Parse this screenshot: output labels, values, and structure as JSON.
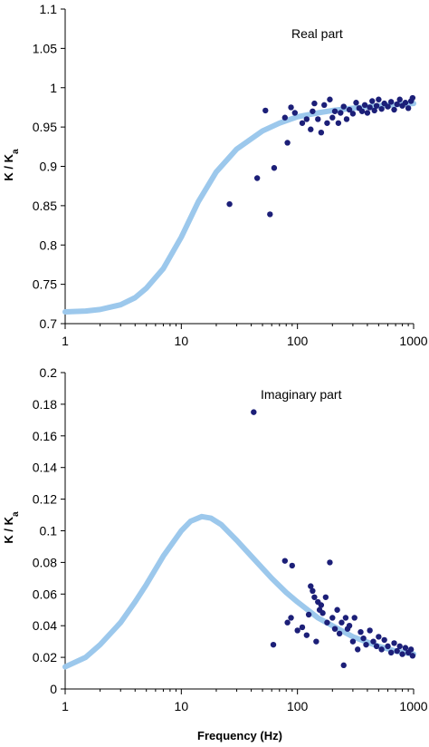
{
  "chart_data": [
    {
      "type": "scatter",
      "annotation": "Real part",
      "ylabel": "K / K",
      "ylabel_sub": "a",
      "x_scale": "log",
      "xlim": [
        1,
        1000
      ],
      "ylim": [
        0.7,
        1.1
      ],
      "x_ticks": [
        1,
        10,
        100,
        1000
      ],
      "x_tick_labels": [
        "1",
        "10",
        "100",
        "1000"
      ],
      "y_ticks": [
        0.7,
        0.75,
        0.8,
        0.85,
        0.9,
        0.95,
        1.0,
        1.05,
        1.1
      ],
      "y_tick_labels": [
        "0.7",
        "0.75",
        "0.8",
        "0.85",
        "0.9",
        "0.95",
        "1",
        "1.05",
        "1.1"
      ],
      "grid": false,
      "series": [
        {
          "kind": "line",
          "color": "#9cc8ec",
          "points": [
            [
              1,
              0.715
            ],
            [
              1.5,
              0.716
            ],
            [
              2,
              0.718
            ],
            [
              3,
              0.724
            ],
            [
              4,
              0.733
            ],
            [
              5,
              0.745
            ],
            [
              7,
              0.77
            ],
            [
              10,
              0.81
            ],
            [
              14,
              0.855
            ],
            [
              20,
              0.893
            ],
            [
              30,
              0.922
            ],
            [
              50,
              0.945
            ],
            [
              70,
              0.955
            ],
            [
              100,
              0.963
            ],
            [
              150,
              0.968
            ],
            [
              200,
              0.971
            ],
            [
              300,
              0.974
            ],
            [
              500,
              0.977
            ],
            [
              1000,
              0.98
            ]
          ]
        },
        {
          "kind": "scatter",
          "color": "#1c1f78",
          "points": [
            [
              26,
              0.852
            ],
            [
              45,
              0.885
            ],
            [
              53,
              0.971
            ],
            [
              58,
              0.839
            ],
            [
              63,
              0.898
            ],
            [
              78,
              0.962
            ],
            [
              82,
              0.93
            ],
            [
              88,
              0.975
            ],
            [
              95,
              0.968
            ],
            [
              110,
              0.955
            ],
            [
              120,
              0.96
            ],
            [
              130,
              0.947
            ],
            [
              135,
              0.97
            ],
            [
              140,
              0.98
            ],
            [
              150,
              0.96
            ],
            [
              160,
              0.943
            ],
            [
              170,
              0.978
            ],
            [
              180,
              0.955
            ],
            [
              190,
              0.985
            ],
            [
              200,
              0.962
            ],
            [
              210,
              0.97
            ],
            [
              225,
              0.955
            ],
            [
              235,
              0.968
            ],
            [
              250,
              0.976
            ],
            [
              265,
              0.96
            ],
            [
              280,
              0.972
            ],
            [
              300,
              0.967
            ],
            [
              320,
              0.981
            ],
            [
              340,
              0.974
            ],
            [
              360,
              0.97
            ],
            [
              380,
              0.978
            ],
            [
              400,
              0.968
            ],
            [
              420,
              0.975
            ],
            [
              440,
              0.983
            ],
            [
              460,
              0.971
            ],
            [
              480,
              0.977
            ],
            [
              500,
              0.985
            ],
            [
              530,
              0.973
            ],
            [
              560,
              0.98
            ],
            [
              600,
              0.976
            ],
            [
              640,
              0.982
            ],
            [
              680,
              0.972
            ],
            [
              720,
              0.979
            ],
            [
              760,
              0.985
            ],
            [
              800,
              0.977
            ],
            [
              850,
              0.981
            ],
            [
              900,
              0.974
            ],
            [
              950,
              0.983
            ],
            [
              980,
              0.987
            ]
          ]
        }
      ]
    },
    {
      "type": "scatter",
      "annotation": "Imaginary part",
      "ylabel": "K / K",
      "ylabel_sub": "a",
      "xlabel": "Frequency (Hz)",
      "x_scale": "log",
      "xlim": [
        1,
        1000
      ],
      "ylim": [
        0,
        0.2
      ],
      "x_ticks": [
        1,
        10,
        100,
        1000
      ],
      "x_tick_labels": [
        "1",
        "10",
        "100",
        "1000"
      ],
      "y_ticks": [
        0,
        0.02,
        0.04,
        0.06,
        0.08,
        0.1,
        0.12,
        0.14,
        0.16,
        0.18,
        0.2
      ],
      "y_tick_labels": [
        "0",
        "0.02",
        "0.04",
        "0.06",
        "0.08",
        "0.1",
        "0.12",
        "0.14",
        "0.16",
        "0.18",
        "0.2"
      ],
      "grid": false,
      "series": [
        {
          "kind": "line",
          "color": "#9cc8ec",
          "points": [
            [
              1,
              0.014
            ],
            [
              1.5,
              0.02
            ],
            [
              2,
              0.028
            ],
            [
              3,
              0.042
            ],
            [
              4,
              0.055
            ],
            [
              5,
              0.066
            ],
            [
              7,
              0.084
            ],
            [
              10,
              0.1
            ],
            [
              12,
              0.106
            ],
            [
              15,
              0.109
            ],
            [
              18,
              0.108
            ],
            [
              22,
              0.104
            ],
            [
              30,
              0.094
            ],
            [
              40,
              0.084
            ],
            [
              60,
              0.07
            ],
            [
              80,
              0.061
            ],
            [
              100,
              0.055
            ],
            [
              150,
              0.045
            ],
            [
              200,
              0.04
            ],
            [
              300,
              0.033
            ],
            [
              500,
              0.027
            ],
            [
              700,
              0.024
            ],
            [
              1000,
              0.022
            ]
          ]
        },
        {
          "kind": "scatter",
          "color": "#1c1f78",
          "points": [
            [
              42,
              0.175
            ],
            [
              62,
              0.028
            ],
            [
              78,
              0.081
            ],
            [
              82,
              0.042
            ],
            [
              88,
              0.045
            ],
            [
              90,
              0.078
            ],
            [
              100,
              0.037
            ],
            [
              110,
              0.039
            ],
            [
              120,
              0.034
            ],
            [
              125,
              0.047
            ],
            [
              130,
              0.065
            ],
            [
              135,
              0.062
            ],
            [
              140,
              0.058
            ],
            [
              145,
              0.03
            ],
            [
              150,
              0.055
            ],
            [
              155,
              0.05
            ],
            [
              160,
              0.053
            ],
            [
              165,
              0.048
            ],
            [
              175,
              0.058
            ],
            [
              180,
              0.042
            ],
            [
              190,
              0.08
            ],
            [
              200,
              0.045
            ],
            [
              210,
              0.038
            ],
            [
              220,
              0.05
            ],
            [
              230,
              0.035
            ],
            [
              240,
              0.042
            ],
            [
              250,
              0.015
            ],
            [
              260,
              0.045
            ],
            [
              270,
              0.038
            ],
            [
              280,
              0.04
            ],
            [
              300,
              0.03
            ],
            [
              310,
              0.045
            ],
            [
              330,
              0.025
            ],
            [
              350,
              0.036
            ],
            [
              370,
              0.032
            ],
            [
              390,
              0.028
            ],
            [
              420,
              0.037
            ],
            [
              450,
              0.03
            ],
            [
              480,
              0.027
            ],
            [
              500,
              0.033
            ],
            [
              530,
              0.025
            ],
            [
              560,
              0.031
            ],
            [
              600,
              0.027
            ],
            [
              640,
              0.023
            ],
            [
              680,
              0.029
            ],
            [
              720,
              0.024
            ],
            [
              760,
              0.027
            ],
            [
              800,
              0.022
            ],
            [
              850,
              0.026
            ],
            [
              900,
              0.023
            ],
            [
              950,
              0.025
            ],
            [
              980,
              0.021
            ]
          ]
        }
      ]
    }
  ]
}
